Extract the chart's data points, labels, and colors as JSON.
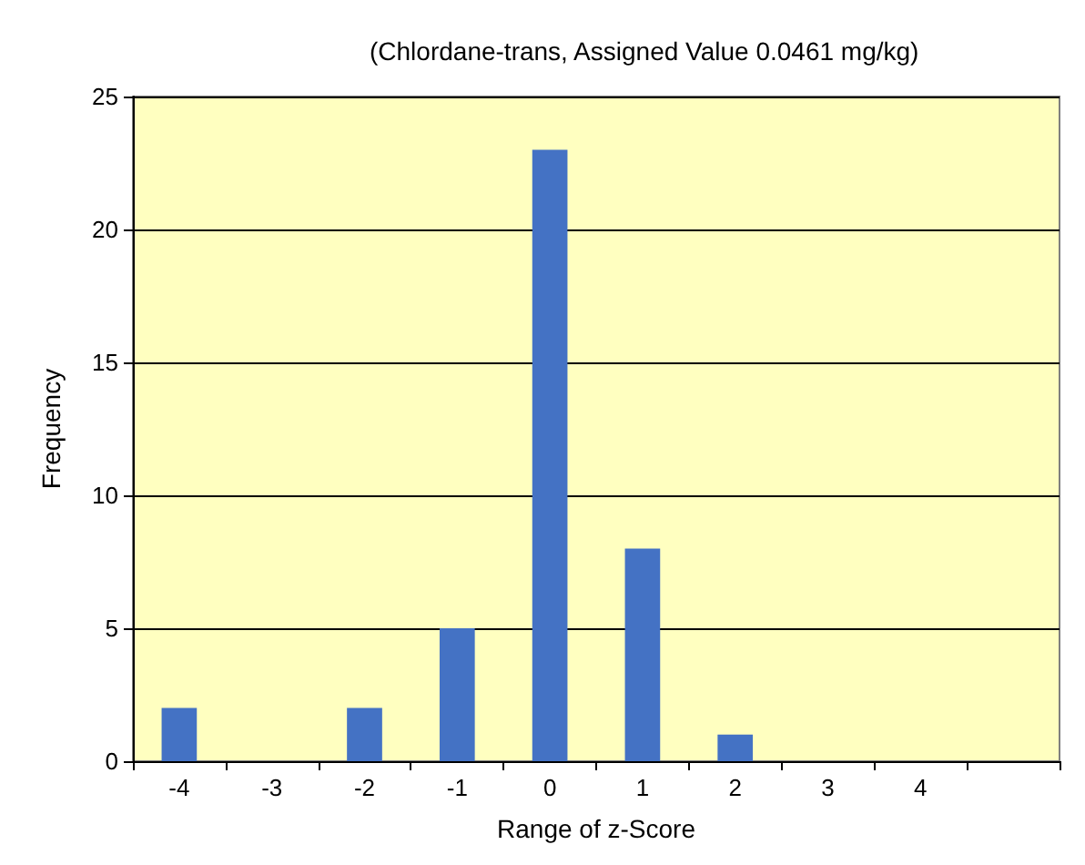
{
  "chart_data": {
    "type": "bar",
    "title": "(Chlordane-trans, Assigned Value 0.0461 mg/kg)",
    "xlabel": "Range of z-Score",
    "ylabel": "Frequency",
    "categories": [
      "-4",
      "-3",
      "-2",
      "-1",
      "0",
      "1",
      "2",
      "3",
      "4",
      null
    ],
    "values": [
      2,
      0,
      2,
      5,
      23,
      8,
      1,
      0,
      0,
      0
    ],
    "color": "#4472c4",
    "ylim": [
      0,
      25
    ],
    "yticks": [
      0,
      5,
      10,
      15,
      20,
      25
    ],
    "grid": "y"
  }
}
